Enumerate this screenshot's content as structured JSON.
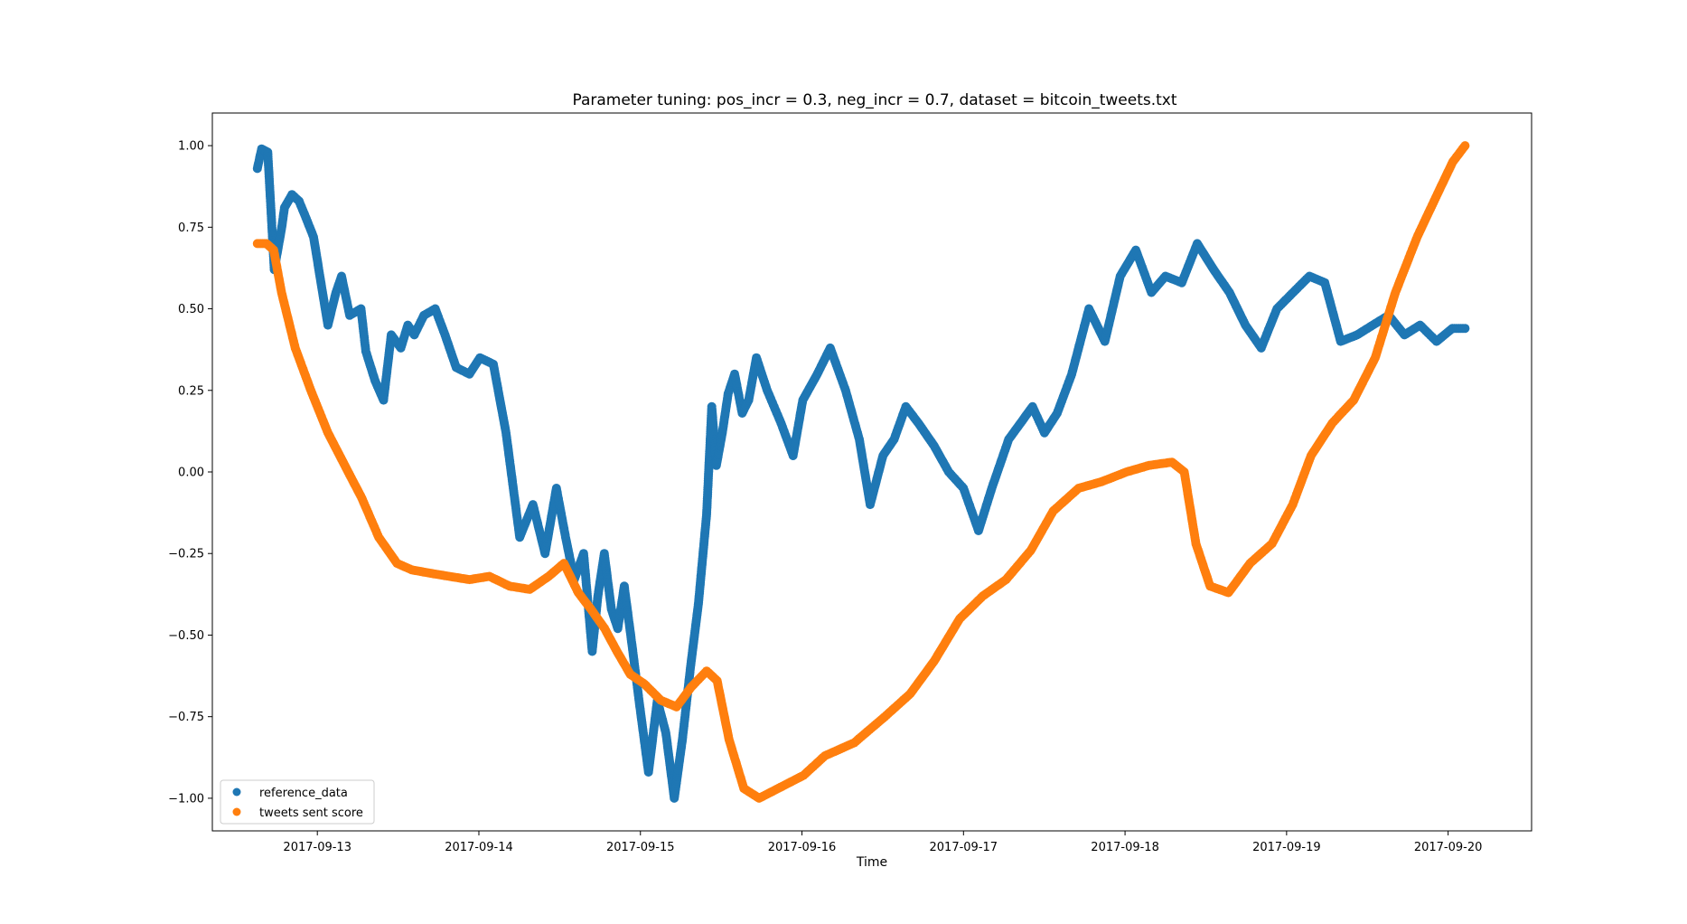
{
  "chart_data": {
    "type": "scatter",
    "title": "Parameter tuning: pos_incr = 0.3, neg_incr = 0.7, dataset = bitcoin_tweets.txt",
    "xlabel": "Time",
    "ylabel": "",
    "xlim": [
      "2017-09-12 08:24",
      "2017-09-20 12:24"
    ],
    "ylim": [
      -1.1,
      1.1
    ],
    "x_ticks": [
      "2017-09-13",
      "2017-09-14",
      "2017-09-15",
      "2017-09-16",
      "2017-09-17",
      "2017-09-18",
      "2017-09-19",
      "2017-09-20"
    ],
    "y_ticks": [
      1.0,
      0.75,
      0.5,
      0.25,
      0.0,
      -0.25,
      -0.5,
      -0.75,
      -1.0
    ],
    "y_tick_labels": [
      "1.00",
      "0.75",
      "0.50",
      "0.25",
      "0.00",
      "−0.25",
      "−0.50",
      "−0.75",
      "−1.00"
    ],
    "grid": false,
    "legend_position": "lower-left",
    "series": [
      {
        "name": "reference_data",
        "color": "#1f77b4",
        "x": [
          "2017-09-12 15:05",
          "2017-09-12 15:43",
          "2017-09-12 16:38",
          "2017-09-12 17:36",
          "2017-09-12 18:43",
          "2017-09-12 19:07",
          "2017-09-12 20:14",
          "2017-09-12 21:17",
          "2017-09-12 22:17",
          "2017-09-12 23:26",
          "2017-09-13 01:34",
          "2017-09-13 02:46",
          "2017-09-13 03:36",
          "2017-09-13 04:48",
          "2017-09-13 06:29",
          "2017-09-13 07:12",
          "2017-09-13 08:34",
          "2017-09-13 09:50",
          "2017-09-13 10:59",
          "2017-09-13 12:24",
          "2017-09-13 13:26",
          "2017-09-13 14:24",
          "2017-09-13 15:50",
          "2017-09-13 17:31",
          "2017-09-13 18:58",
          "2017-09-13 20:38",
          "2017-09-13 22:36",
          "2017-09-14 00:10",
          "2017-09-14 02:09",
          "2017-09-14 04:02",
          "2017-09-14 06:04",
          "2017-09-14 08:02",
          "2017-09-14 09:50",
          "2017-09-14 11:31",
          "2017-09-14 12:53",
          "2017-09-14 14:10",
          "2017-09-14 15:34",
          "2017-09-14 16:50",
          "2017-09-14 17:41",
          "2017-09-14 18:38",
          "2017-09-14 19:41",
          "2017-09-14 20:38",
          "2017-09-14 21:36",
          "2017-09-14 22:41",
          "2017-09-14 23:55",
          "2017-09-15 01:12",
          "2017-09-15 02:31",
          "2017-09-15 03:47",
          "2017-09-15 05:02",
          "2017-09-15 06:14",
          "2017-09-15 07:26",
          "2017-09-15 08:38",
          "2017-09-15 09:50",
          "2017-09-15 10:36",
          "2017-09-15 11:17",
          "2017-09-15 12:10",
          "2017-09-15 13:02",
          "2017-09-15 14:00",
          "2017-09-15 15:07",
          "2017-09-15 16:05",
          "2017-09-15 17:14",
          "2017-09-15 18:50",
          "2017-09-15 20:53",
          "2017-09-15 22:41",
          "2017-09-16 00:07",
          "2017-09-16 02:17",
          "2017-09-16 04:12",
          "2017-09-16 06:29",
          "2017-09-16 08:31",
          "2017-09-16 10:08",
          "2017-09-16 12:02",
          "2017-09-16 13:41",
          "2017-09-16 15:26",
          "2017-09-16 17:17",
          "2017-09-16 19:38",
          "2017-09-16 21:48",
          "2017-09-17 00:00",
          "2017-09-17 02:14",
          "2017-09-17 04:12",
          "2017-09-17 06:43",
          "2017-09-17 08:29",
          "2017-09-17 10:15",
          "2017-09-17 12:02",
          "2017-09-17 13:55",
          "2017-09-17 16:05",
          "2017-09-17 18:38",
          "2017-09-17 21:00",
          "2017-09-17 23:17",
          "2017-09-18 01:36",
          "2017-09-18 03:55",
          "2017-09-18 06:00",
          "2017-09-18 08:26",
          "2017-09-18 10:44",
          "2017-09-18 13:10",
          "2017-09-18 15:31",
          "2017-09-18 17:53",
          "2017-09-18 20:14",
          "2017-09-18 22:34",
          "2017-09-19 00:58",
          "2017-09-19 03:24",
          "2017-09-19 05:41",
          "2017-09-19 08:02",
          "2017-09-19 10:29",
          "2017-09-19 12:48",
          "2017-09-19 15:10",
          "2017-09-19 17:31",
          "2017-09-19 19:50",
          "2017-09-19 22:17",
          "2017-09-20 00:38",
          "2017-09-20 02:31"
        ],
        "y": [
          0.93,
          0.99,
          0.98,
          0.62,
          0.75,
          0.81,
          0.85,
          0.83,
          0.78,
          0.72,
          0.45,
          0.55,
          0.6,
          0.48,
          0.5,
          0.37,
          0.28,
          0.22,
          0.42,
          0.38,
          0.45,
          0.42,
          0.48,
          0.5,
          0.42,
          0.32,
          0.3,
          0.35,
          0.33,
          0.12,
          -0.2,
          -0.1,
          -0.25,
          -0.05,
          -0.2,
          -0.33,
          -0.25,
          -0.55,
          -0.38,
          -0.25,
          -0.42,
          -0.48,
          -0.35,
          -0.52,
          -0.72,
          -0.92,
          -0.7,
          -0.8,
          -1.0,
          -0.82,
          -0.6,
          -0.4,
          -0.13,
          0.2,
          0.02,
          0.12,
          0.24,
          0.3,
          0.18,
          0.22,
          0.35,
          0.25,
          0.15,
          0.05,
          0.22,
          0.3,
          0.38,
          0.25,
          0.1,
          -0.1,
          0.05,
          0.1,
          0.2,
          0.15,
          0.08,
          0.0,
          -0.05,
          -0.18,
          -0.05,
          0.1,
          0.15,
          0.2,
          0.12,
          0.18,
          0.3,
          0.5,
          0.4,
          0.6,
          0.68,
          0.55,
          0.6,
          0.58,
          0.7,
          0.62,
          0.55,
          0.45,
          0.38,
          0.5,
          0.55,
          0.6,
          0.58,
          0.4,
          0.42,
          0.45,
          0.48,
          0.42,
          0.45,
          0.4,
          0.44,
          0.44
        ]
      },
      {
        "name": "tweets sent score",
        "color": "#ff7f0e",
        "x": [
          "2017-09-12 15:05",
          "2017-09-12 16:26",
          "2017-09-12 17:31",
          "2017-09-12 18:41",
          "2017-09-12 20:43",
          "2017-09-12 23:02",
          "2017-09-13 01:34",
          "2017-09-13 04:05",
          "2017-09-13 06:36",
          "2017-09-13 09:07",
          "2017-09-13 11:50",
          "2017-09-13 14:02",
          "2017-09-13 16:41",
          "2017-09-13 19:36",
          "2017-09-13 22:36",
          "2017-09-14 01:34",
          "2017-09-14 04:34",
          "2017-09-14 07:34",
          "2017-09-14 10:22",
          "2017-09-14 12:38",
          "2017-09-14 14:46",
          "2017-09-14 16:38",
          "2017-09-14 18:41",
          "2017-09-14 20:31",
          "2017-09-14 22:29",
          "2017-09-15 00:36",
          "2017-09-15 03:02",
          "2017-09-15 05:22",
          "2017-09-15 07:31",
          "2017-09-15 09:50",
          "2017-09-15 11:24",
          "2017-09-15 13:10",
          "2017-09-15 15:22",
          "2017-09-15 17:38",
          "2017-09-16 00:14",
          "2017-09-16 03:24",
          "2017-09-16 07:46",
          "2017-09-16 12:19",
          "2017-09-16 16:05",
          "2017-09-16 19:38",
          "2017-09-16 23:26",
          "2017-09-17 02:53",
          "2017-09-17 06:19",
          "2017-09-17 10:01",
          "2017-09-17 13:19",
          "2017-09-17 17:06",
          "2017-09-17 20:31",
          "2017-09-18 00:14",
          "2017-09-18 03:34",
          "2017-09-18 06:58",
          "2017-09-18 08:48",
          "2017-09-18 10:32",
          "2017-09-18 12:38",
          "2017-09-18 15:22",
          "2017-09-18 18:34",
          "2017-09-18 21:50",
          "2017-09-19 00:55",
          "2017-09-19 03:38",
          "2017-09-19 06:48",
          "2017-09-19 09:58",
          "2017-09-19 13:10",
          "2017-09-19 16:10",
          "2017-09-19 19:24",
          "2017-09-19 22:22",
          "2017-09-20 00:41",
          "2017-09-20 02:31"
        ],
        "y": [
          0.7,
          0.7,
          0.68,
          0.55,
          0.38,
          0.25,
          0.12,
          0.02,
          -0.08,
          -0.2,
          -0.28,
          -0.3,
          -0.31,
          -0.32,
          -0.33,
          -0.32,
          -0.35,
          -0.36,
          -0.32,
          -0.28,
          -0.37,
          -0.42,
          -0.48,
          -0.55,
          -0.62,
          -0.65,
          -0.7,
          -0.72,
          -0.66,
          -0.61,
          -0.64,
          -0.82,
          -0.97,
          -1.0,
          -0.93,
          -0.87,
          -0.83,
          -0.75,
          -0.68,
          -0.58,
          -0.45,
          -0.38,
          -0.33,
          -0.24,
          -0.12,
          -0.05,
          -0.03,
          0.0,
          0.02,
          0.03,
          0.0,
          -0.22,
          -0.35,
          -0.37,
          -0.28,
          -0.22,
          -0.1,
          0.05,
          0.15,
          0.22,
          0.35,
          0.55,
          0.72,
          0.85,
          0.95,
          1.0
        ]
      }
    ]
  }
}
